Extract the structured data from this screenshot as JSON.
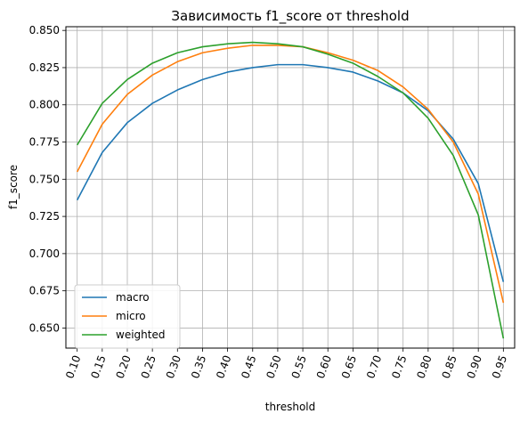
{
  "chart_data": {
    "type": "line",
    "title": "Зависимость f1_score от threshold",
    "xlabel": "threshold",
    "ylabel": "f1_score",
    "x": [
      0.1,
      0.15,
      0.2,
      0.25,
      0.3,
      0.35,
      0.4,
      0.45,
      0.5,
      0.55,
      0.6,
      0.65,
      0.7,
      0.75,
      0.8,
      0.85,
      0.9,
      0.95
    ],
    "x_tick_labels": [
      "0.10",
      "0.15",
      "0.20",
      "0.25",
      "0.30",
      "0.35",
      "0.40",
      "0.45",
      "0.50",
      "0.55",
      "0.60",
      "0.65",
      "0.70",
      "0.75",
      "0.80",
      "0.85",
      "0.90",
      "0.95"
    ],
    "y_ticks": [
      0.65,
      0.675,
      0.7,
      0.725,
      0.75,
      0.775,
      0.8,
      0.825,
      0.85
    ],
    "y_tick_labels": [
      "0.650",
      "0.675",
      "0.700",
      "0.725",
      "0.750",
      "0.775",
      "0.800",
      "0.825",
      "0.850"
    ],
    "xlim": [
      0.0775,
      0.9725
    ],
    "ylim": [
      0.6365,
      0.8525
    ],
    "grid": true,
    "legend_position": "lower-left",
    "series": [
      {
        "name": "macro",
        "color": "#1f77b4",
        "values": [
          0.736,
          0.768,
          0.788,
          0.801,
          0.81,
          0.817,
          0.822,
          0.825,
          0.827,
          0.827,
          0.825,
          0.822,
          0.816,
          0.808,
          0.796,
          0.777,
          0.747,
          0.681
        ]
      },
      {
        "name": "micro",
        "color": "#ff7f0e",
        "values": [
          0.755,
          0.787,
          0.807,
          0.82,
          0.829,
          0.835,
          0.838,
          0.84,
          0.84,
          0.839,
          0.835,
          0.83,
          0.823,
          0.812,
          0.797,
          0.775,
          0.74,
          0.667
        ]
      },
      {
        "name": "weighted",
        "color": "#2ca02c",
        "values": [
          0.773,
          0.801,
          0.817,
          0.828,
          0.835,
          0.839,
          0.841,
          0.842,
          0.841,
          0.839,
          0.834,
          0.828,
          0.819,
          0.808,
          0.791,
          0.766,
          0.726,
          0.643
        ]
      }
    ]
  }
}
